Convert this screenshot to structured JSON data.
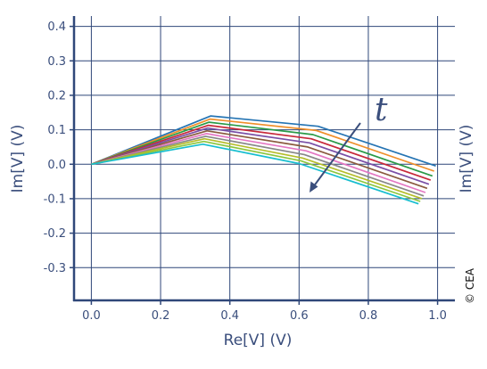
{
  "chart_data": {
    "type": "line",
    "title": "",
    "xlabel": "Re[V] (V)",
    "ylabel_left": "Im[V] (V)",
    "ylabel_right": "Im[V] (V)",
    "xlim": [
      -0.05,
      1.05
    ],
    "ylim": [
      -0.395,
      0.43
    ],
    "xticks": [
      0.0,
      0.2,
      0.4,
      0.6,
      0.8,
      1.0
    ],
    "xtick_labels": [
      "0.0",
      "0.2",
      "0.4",
      "0.6",
      "0.8",
      "1.0"
    ],
    "yticks": [
      0.4,
      0.3,
      0.2,
      0.1,
      0.0,
      -0.1,
      -0.2,
      -0.3
    ],
    "ytick_labels": [
      "0.4",
      "0.3",
      "0.2",
      "0.1",
      "0.0",
      "-0.1",
      "-0.2",
      "-0.3"
    ],
    "grid": true,
    "legend": "none",
    "annotation": {
      "text": "t"
    },
    "credit": "© CEA",
    "series": [
      {
        "color": "#2574b3",
        "x": [
          0.0,
          0.345,
          0.655,
          0.995
        ],
        "y": [
          0.0,
          0.14,
          0.11,
          -0.005
        ]
      },
      {
        "color": "#ef8f2a",
        "x": [
          0.0,
          0.343,
          0.65,
          0.99
        ],
        "y": [
          0.0,
          0.131,
          0.098,
          -0.02
        ]
      },
      {
        "color": "#2a9a47",
        "x": [
          0.0,
          0.34,
          0.64,
          0.985
        ],
        "y": [
          0.0,
          0.122,
          0.086,
          -0.034
        ]
      },
      {
        "color": "#c7293a",
        "x": [
          0.0,
          0.338,
          0.635,
          0.98
        ],
        "y": [
          0.0,
          0.113,
          0.074,
          -0.046
        ]
      },
      {
        "color": "#7a4fa6",
        "x": [
          0.0,
          0.336,
          0.63,
          0.975
        ],
        "y": [
          0.0,
          0.105,
          0.062,
          -0.058
        ]
      },
      {
        "color": "#8a5a3e",
        "x": [
          0.0,
          0.334,
          0.625,
          0.97
        ],
        "y": [
          0.0,
          0.097,
          0.05,
          -0.07
        ]
      },
      {
        "color": "#e377c2",
        "x": [
          0.0,
          0.332,
          0.62,
          0.965
        ],
        "y": [
          0.0,
          0.089,
          0.039,
          -0.082
        ]
      },
      {
        "color": "#888888",
        "x": [
          0.0,
          0.33,
          0.615,
          0.96
        ],
        "y": [
          0.0,
          0.081,
          0.028,
          -0.092
        ]
      },
      {
        "color": "#b5bd2a",
        "x": [
          0.0,
          0.327,
          0.61,
          0.955
        ],
        "y": [
          0.0,
          0.074,
          0.018,
          -0.1
        ]
      },
      {
        "color": "#8cc63f",
        "x": [
          0.0,
          0.325,
          0.605,
          0.95
        ],
        "y": [
          0.0,
          0.066,
          0.01,
          -0.108
        ]
      },
      {
        "color": "#17becf",
        "x": [
          0.0,
          0.322,
          0.6,
          0.945
        ],
        "y": [
          0.0,
          0.058,
          0.002,
          -0.115
        ]
      }
    ]
  }
}
